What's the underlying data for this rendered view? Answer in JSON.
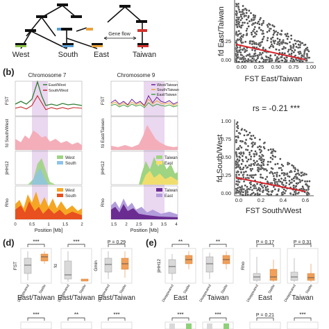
{
  "tree": {
    "leaves": [
      "West",
      "South",
      "East",
      "Taiwan"
    ],
    "gene_flow_label": "Gene flow",
    "colors": {
      "west": "#8bc34a",
      "south": "#5aa0d8",
      "east": "#e9a23b",
      "taiwan": "#d2332e"
    }
  },
  "scatter_top": {
    "ylabel": "fd East/Taiwan",
    "xlabel": "FST East/Taiwan",
    "yticks": [
      "0.00",
      "0.25"
    ],
    "xticks": [
      "0.00",
      "0.25",
      "0.50",
      "0.75",
      "1.00"
    ]
  },
  "panel_b": {
    "label": "(b)",
    "chr7_title": "Chromosome 7",
    "chr9_title": "Chromosome 9",
    "chr7_fst_legend": [
      "East/West",
      "South/West"
    ],
    "chr9_fst_legend": [
      "West/Taiwan",
      "South/Taiwan",
      "East/Taiwan"
    ],
    "chr7_fd_label": "fd South/West",
    "chr9_fd_label": "fd East/Taiwan",
    "chr7_ihh_legend": [
      "West",
      "South"
    ],
    "chr9_ihh_legend": [
      "Taiwan",
      "East"
    ],
    "chr7_rho_legend": [
      "West",
      "South"
    ],
    "chr9_rho_legend": [
      "Taiwan",
      "East"
    ],
    "fst_label": "FST",
    "ihh_label": "|iHH12",
    "rho_label": "Rho",
    "chr7_xticks": [
      "0",
      "0.5",
      "1",
      "1.5",
      "2"
    ],
    "chr9_xticks": [
      "1.5",
      "2",
      "2.5",
      "3",
      "3.5",
      "4"
    ],
    "xlabel": "Position [Mb]"
  },
  "scatter_bottom": {
    "stat": "rs = -0.21 ***",
    "ylabel": "fd South/West",
    "xlabel": "FST South/West",
    "yticks": [
      "0.00",
      "0.25",
      "0.50",
      "0.75",
      "1.00"
    ],
    "xticks": [
      "0.0",
      "0.2",
      "0.4",
      "0.6"
    ]
  },
  "panel_d": {
    "label": "(d)",
    "box_labels": [
      "FST",
      "fd",
      "Gmin"
    ],
    "sig": [
      "***",
      "***",
      "P = 0.29"
    ],
    "categories": [
      "Disappeared",
      "Stable"
    ],
    "group_label": "East/Taiwan",
    "row2_sig": [
      "***",
      "**",
      "***"
    ]
  },
  "panel_e": {
    "label": "(e)",
    "ihh_label": "|iHH12",
    "rho_label": "Rho",
    "sig": [
      "**",
      "**",
      "P = 0.17",
      "P = 0.31"
    ],
    "groups": [
      "East",
      "Taiwan",
      "East",
      "Taiwan"
    ],
    "categories": [
      "Disappeared",
      "Stable"
    ],
    "row2_sig": [
      "***",
      "***",
      "P = 0.21",
      "***"
    ]
  }
}
